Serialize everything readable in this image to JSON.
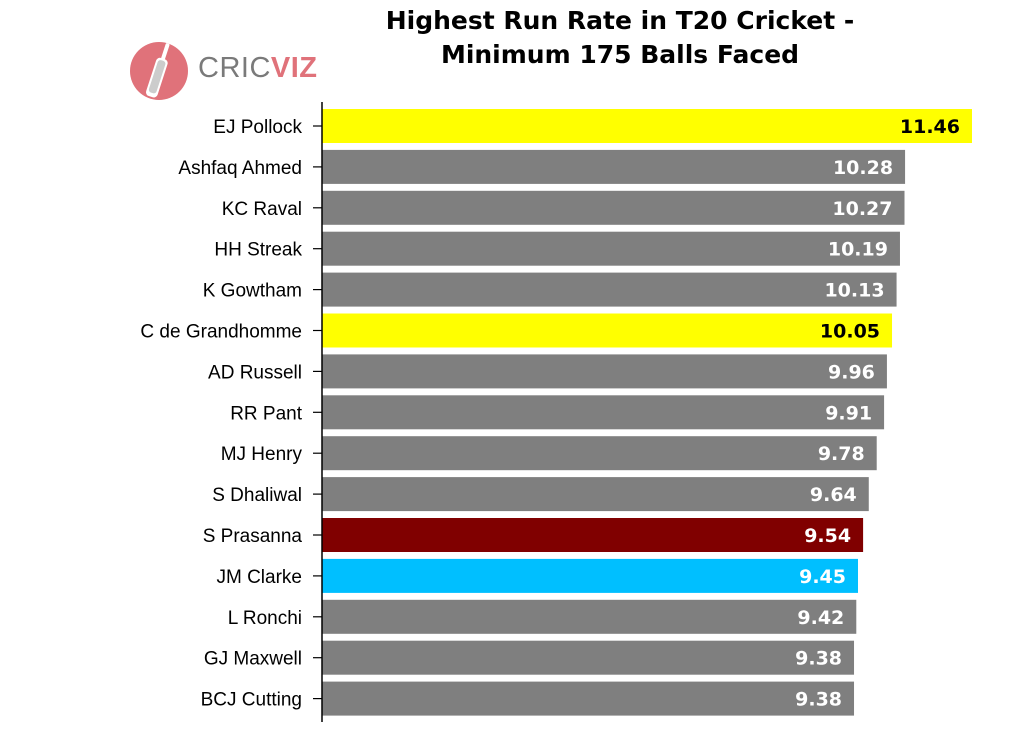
{
  "logo": {
    "text_part1": "CRIC",
    "text_part2": "VIZ",
    "brand_color": "#e0727a"
  },
  "chart_data": {
    "type": "bar",
    "orientation": "horizontal",
    "title_line1": "Highest Run Rate in T20 Cricket -",
    "title_line2": "Minimum 175 Balls Faced",
    "xlabel": "",
    "ylabel": "",
    "xlim": [
      0,
      11.46
    ],
    "grid": false,
    "categories": [
      "EJ Pollock",
      "Ashfaq Ahmed",
      "KC Raval",
      "HH Streak",
      "K Gowtham",
      "C de Grandhomme",
      "AD Russell",
      "RR Pant",
      "MJ Henry",
      "S Dhaliwal",
      "S Prasanna",
      "JM Clarke",
      "L Ronchi",
      "GJ Maxwell",
      "BCJ Cutting"
    ],
    "values": [
      11.46,
      10.28,
      10.27,
      10.19,
      10.13,
      10.05,
      9.96,
      9.91,
      9.78,
      9.64,
      9.54,
      9.45,
      9.42,
      9.38,
      9.38
    ],
    "value_labels": [
      "11.46",
      "10.28",
      "10.27",
      "10.19",
      "10.13",
      "10.05",
      "9.96",
      "9.91",
      "9.78",
      "9.64",
      "9.54",
      "9.45",
      "9.42",
      "9.38",
      "9.38"
    ],
    "bar_colors": [
      "#ffff00",
      "#7f7f7f",
      "#7f7f7f",
      "#7f7f7f",
      "#7f7f7f",
      "#ffff00",
      "#7f7f7f",
      "#7f7f7f",
      "#7f7f7f",
      "#7f7f7f",
      "#800000",
      "#00bfff",
      "#7f7f7f",
      "#7f7f7f",
      "#7f7f7f"
    ],
    "label_colors": [
      "#000000",
      "#ffffff",
      "#ffffff",
      "#ffffff",
      "#ffffff",
      "#000000",
      "#ffffff",
      "#ffffff",
      "#ffffff",
      "#ffffff",
      "#ffffff",
      "#ffffff",
      "#ffffff",
      "#ffffff",
      "#ffffff"
    ]
  }
}
